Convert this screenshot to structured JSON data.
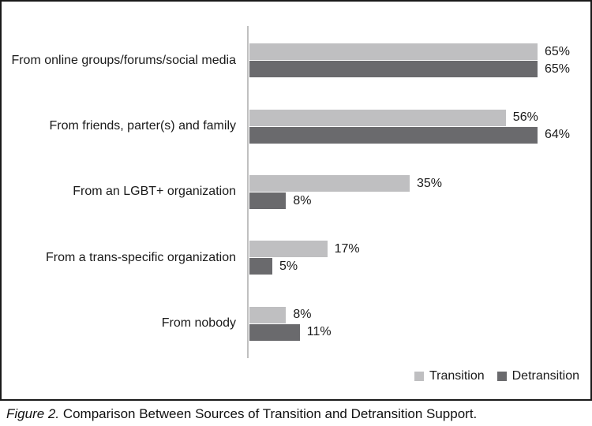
{
  "chart_data": {
    "type": "bar",
    "orientation": "horizontal",
    "categories": [
      "From online groups/forums/social media",
      "From friends, parter(s) and family",
      "From an LGBT+ organization",
      "From a trans-specific organization",
      "From nobody"
    ],
    "series": [
      {
        "name": "Transition",
        "color": "#bfbfc1",
        "values": [
          65,
          56,
          35,
          17,
          8
        ],
        "labels": [
          "65%",
          "56%",
          "35%",
          "17%",
          "8%"
        ]
      },
      {
        "name": "Detransition",
        "color": "#6a6a6d",
        "values": [
          65,
          64,
          8,
          5,
          11
        ],
        "labels": [
          "65%",
          "64%",
          "8%",
          "5%",
          "11%"
        ]
      }
    ],
    "xlim": [
      0,
      70
    ],
    "grid": false,
    "legend_position": "bottom-right",
    "axis_color": "#c0c0c0"
  },
  "caption": {
    "figure_label": "Figure 2.",
    "text": "Comparison Between Sources of Transition and Detransition Support."
  }
}
